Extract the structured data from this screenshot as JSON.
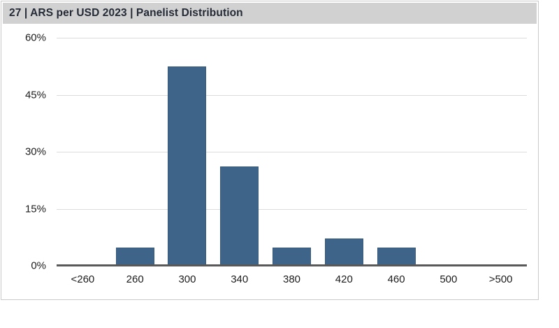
{
  "panel": {
    "title": "27 | ARS per USD 2023 | Panelist Distribution"
  },
  "chart_data": {
    "type": "bar",
    "title": "27 | ARS per USD 2023 | Panelist Distribution",
    "categories": [
      "<260",
      "260",
      "300",
      "340",
      "380",
      "420",
      "460",
      "500",
      ">500"
    ],
    "values": [
      0,
      4.8,
      52.4,
      26.2,
      4.8,
      7.1,
      4.8,
      0,
      0
    ],
    "xlabel": "",
    "ylabel": "",
    "ylim": [
      0,
      60
    ],
    "yticks": [
      0,
      15,
      30,
      45,
      60
    ],
    "ytick_labels": [
      "0%",
      "15%",
      "30%",
      "45%",
      "60%"
    ],
    "grid": true,
    "legend": "none"
  },
  "colors": {
    "bar_fill": "#3e6489",
    "bar_border": "#37597c",
    "header_bg": "#d1d1d1",
    "title_text": "#242b36",
    "gridline": "#dcdcdc",
    "baseline": "#595959",
    "axis_text": "#1c1c1c",
    "panel_border": "#c9c9c9"
  }
}
